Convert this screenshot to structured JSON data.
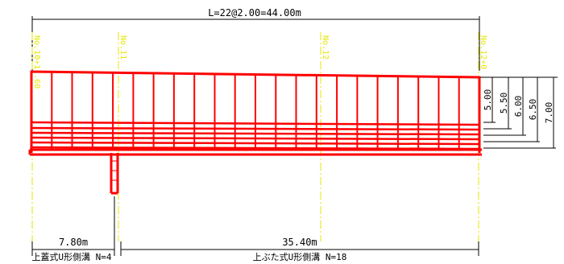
{
  "colors": {
    "structure": "#ff0000",
    "station_line": "#e6e600",
    "dimension": "#000000",
    "background": "#ffffff"
  },
  "dimensions": {
    "top_total": "L=22@2.00=44.00m",
    "heights": [
      "5.00",
      "5.50",
      "6.00",
      "6.50",
      "7.00"
    ],
    "bottom_left": "7.80m",
    "bottom_right": "35.40m"
  },
  "stations": [
    "No.10+11.60",
    "No.11",
    "No.12",
    "No.12+0"
  ],
  "ditches": {
    "left": "上蓋式U形側溝 N=4",
    "right": "上ぶた式U形側溝 N=18"
  }
}
